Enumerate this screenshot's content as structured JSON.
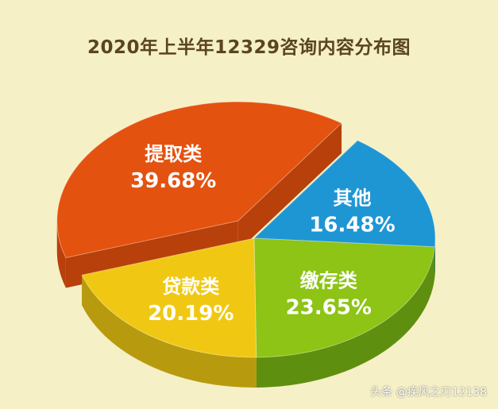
{
  "title": "2020年上半年12329咨询内容分布图",
  "chart_data": {
    "type": "pie",
    "title": "2020年上半年12329咨询内容分布图",
    "slices": [
      {
        "label": "提取类",
        "value": 39.68,
        "value_text": "39.68%",
        "color": "#e4520f",
        "side_color": "#b8400a"
      },
      {
        "label": "其他",
        "value": 16.48,
        "value_text": "16.48%",
        "color": "#1e96d4",
        "side_color": "#1471a4"
      },
      {
        "label": "缴存类",
        "value": 23.65,
        "value_text": "23.65%",
        "color": "#8dc415",
        "side_color": "#5f8f0f"
      },
      {
        "label": "贷款类",
        "value": 20.19,
        "value_text": "20.19%",
        "color": "#f0c814",
        "side_color": "#b89a0e"
      }
    ],
    "exploded": "提取类",
    "style": "3d"
  },
  "watermark": "头条 @疾风之刃12138"
}
